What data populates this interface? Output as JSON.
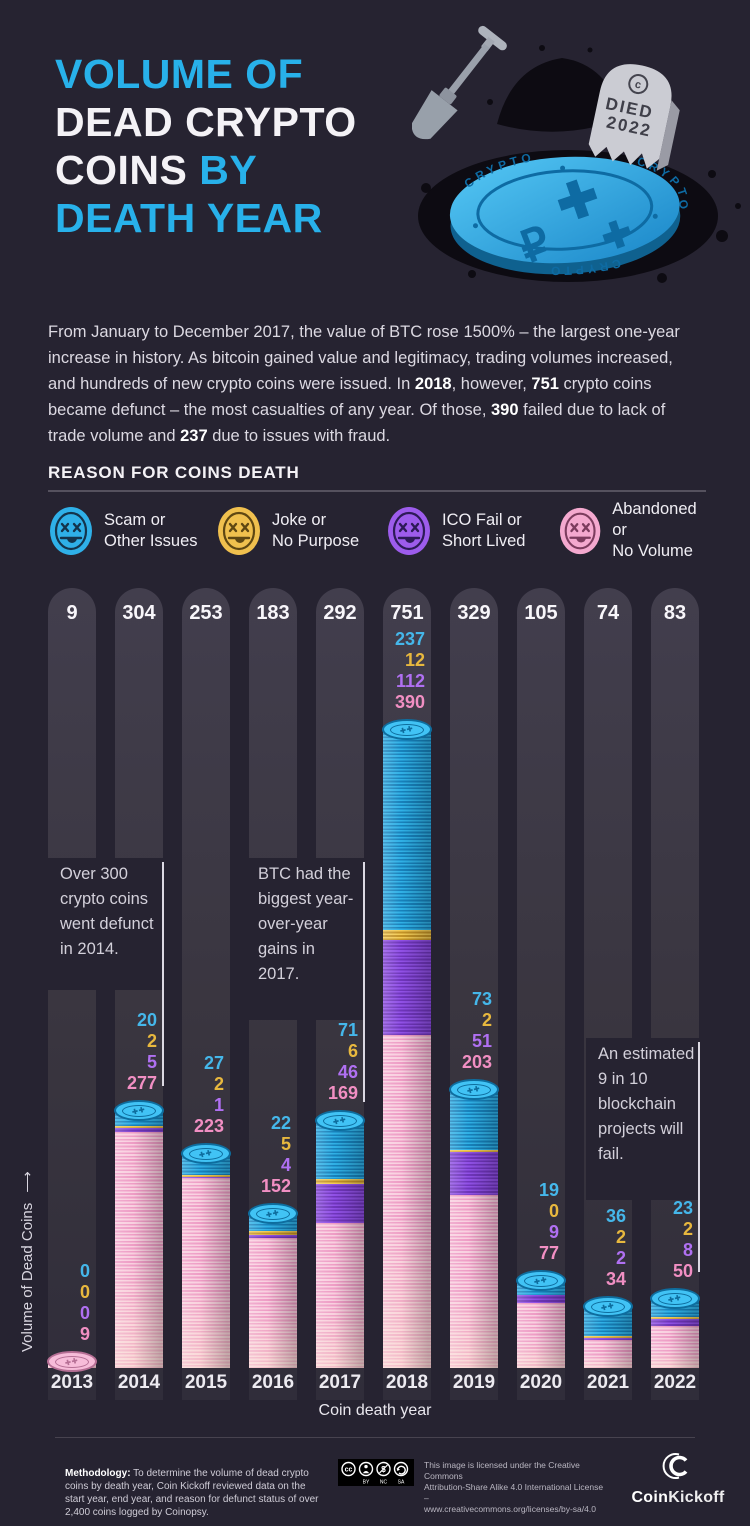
{
  "header": {
    "t1": "VOLUME OF",
    "t2": "DEAD CRYPTO",
    "t3a": "COINS ",
    "t3b": "BY",
    "t4": "DEATH YEAR"
  },
  "hero": {
    "tombstone_line1": "DIED",
    "tombstone_line2": "2022",
    "coin_rim_text": "CRYPTO"
  },
  "intro": {
    "p1": "From January to December 2017, the value of BTC rose 1500% – the largest one-year increase in history. As bitcoin gained value and legitimacy, trading volumes increased, and hundreds of new crypto coins were issued. In ",
    "b1": "2018",
    "p2": ", however, ",
    "b2": "751",
    "p3": " crypto coins became defunct – the most casualties of any year. Of those, ",
    "b3": "390",
    "p4": " failed due to lack of trade volume and ",
    "b4": "237",
    "p5": " due to issues with fraud."
  },
  "legend": {
    "title": "REASON FOR COINS DEATH",
    "items": [
      {
        "line1": "Scam or",
        "line2": "Other Issues",
        "color": "#2fb0e8",
        "dark": "#14344c"
      },
      {
        "line1": "Joke or",
        "line2": "No Purpose",
        "color": "#f0c04e",
        "dark": "#5f4712"
      },
      {
        "line1": "ICO Fail or",
        "line2": "Short Lived",
        "color": "#9d5cec",
        "dark": "#2d1a58"
      },
      {
        "line1": "Abandoned or",
        "line2": "No Volume",
        "color": "#f4a9cf",
        "dark": "#7c3c5e"
      }
    ]
  },
  "chart_data": {
    "type": "bar",
    "stacked": true,
    "x": [
      "2013",
      "2014",
      "2015",
      "2016",
      "2017",
      "2018",
      "2019",
      "2020",
      "2021",
      "2022"
    ],
    "totals": [
      9,
      304,
      253,
      183,
      292,
      751,
      329,
      105,
      74,
      83
    ],
    "series": [
      {
        "key": "scam",
        "name": "Scam or Other Issues",
        "color": "#2fb0e6",
        "ridge": "#1781bb",
        "label_color": "#45b7ea",
        "cap_face": "#41c3f5",
        "cap_edge": "#0e6d9e",
        "values": [
          0,
          20,
          27,
          22,
          71,
          237,
          73,
          19,
          36,
          23
        ]
      },
      {
        "key": "joke",
        "name": "Joke or No Purpose",
        "color": "#f2ca55",
        "ridge": "#c39326",
        "label_color": "#e8b83e",
        "cap_face": "#f6d579",
        "cap_edge": "#a77c1d",
        "values": [
          0,
          2,
          2,
          5,
          6,
          12,
          2,
          0,
          2,
          2
        ]
      },
      {
        "key": "ico",
        "name": "ICO Fail or Short Lived",
        "color": "#9050e6",
        "ridge": "#6f35bb",
        "label_color": "#b070f2",
        "cap_face": "#ab77f0",
        "cap_edge": "#5f2aa3",
        "values": [
          0,
          5,
          1,
          4,
          46,
          112,
          51,
          9,
          2,
          8
        ]
      },
      {
        "key": "abandoned",
        "name": "Abandoned or No Volume",
        "color": "#ee9cc5",
        "ridge": "#f9cfdf",
        "label_color": "#f18fc3",
        "cap_face": "#f7bcd9",
        "cap_edge": "#b66f95",
        "values": [
          9,
          277,
          223,
          152,
          169,
          390,
          203,
          77,
          34,
          50
        ]
      }
    ],
    "xlabel": "Coin death year",
    "ylabel": "Volume of Dead Coins",
    "legend_position": "top",
    "grid": false
  },
  "annotations": [
    {
      "text": "Over 300 crypto coins went defunct in 2014."
    },
    {
      "text": "BTC had the biggest year-over-year gains in 2017."
    },
    {
      "text": "An estimated 9 in 10 blockchain projects will fail."
    }
  ],
  "icons": {
    "coin_face": "✚✚",
    "y_arrow": "⟶"
  },
  "footer": {
    "methodology_label": "Methodology:",
    "methodology_text": " To determine the volume of dead crypto coins by death year, Coin Kickoff reviewed data on the start year, end year, and reason for defunct status of over 2,400 coins logged by Coinopsy.",
    "cc_badge_labels": [
      "BY",
      "NC",
      "SA"
    ],
    "license_line1": "This image is licensed under the Creative Commons",
    "license_line2": "Attribution-Share Alike 4.0 International License –",
    "license_line3": "www.creativecommons.org/licenses/by-sa/4.0",
    "brand_bold": "Coin",
    "brand_light": "Kickoff"
  }
}
